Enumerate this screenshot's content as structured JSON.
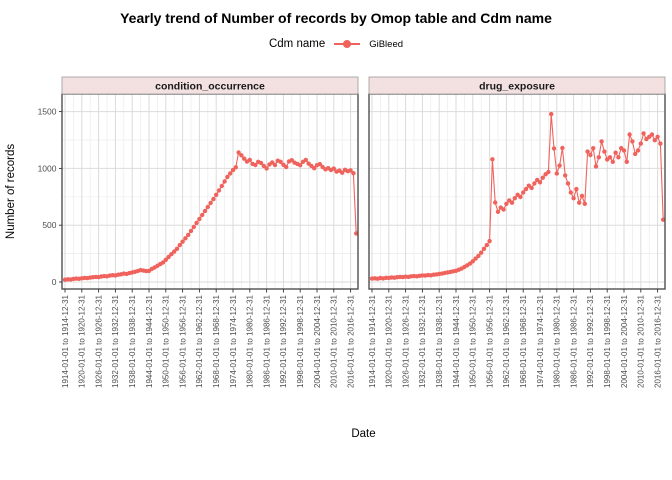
{
  "title": "Yearly trend of Number of records by Omop table and Cdm name",
  "legend": {
    "title": "Cdm name",
    "position": "top",
    "items": [
      {
        "label": "GiBleed",
        "color": "#F0635D",
        "marker": "point-on-line"
      }
    ]
  },
  "colors": {
    "series": "#F0635D",
    "strip_fill": "#F3E1E2",
    "strip_border": "#9A9A9A",
    "panel_border": "#4F4F4F",
    "grid_major": "#DBDBDB",
    "grid_minor": "#ECECEC",
    "tick_label": "#4D4D4D",
    "text": "#000000",
    "background": "#FFFFFF"
  },
  "chart_data": {
    "type": "line",
    "title": "Yearly trend of Number of records by Omop table and Cdm name",
    "xlabel": "Date",
    "ylabel": "Number of records",
    "ylim": [
      0,
      1500
    ],
    "yticks": [
      0,
      500,
      1000,
      1500
    ],
    "grid": "on",
    "legend_position": "top",
    "series_name": "GiBleed",
    "x_range": [
      1914,
      2018
    ],
    "x_step": 1,
    "x_tick_years": [
      1914,
      1920,
      1926,
      1932,
      1938,
      1944,
      1950,
      1956,
      1962,
      1968,
      1974,
      1980,
      1986,
      1992,
      1998,
      2004,
      2010,
      2016
    ],
    "x_tick_labels": [
      "1914-01-01 to 1914-12-31",
      "1920-01-01 to 1920-12-31",
      "1926-01-01 to 1926-12-31",
      "1932-01-01 to 1932-12-31",
      "1938-01-01 to 1938-12-31",
      "1944-01-01 to 1944-12-31",
      "1950-01-01 to 1950-12-31",
      "1956-01-01 to 1956-12-31",
      "1962-01-01 to 1962-12-31",
      "1968-01-01 to 1968-12-31",
      "1974-01-01 to 1974-12-31",
      "1980-01-01 to 1980-12-31",
      "1986-01-01 to 1986-12-31",
      "1992-01-01 to 1992-12-31",
      "1998-01-01 to 1998-12-31",
      "2004-01-01 to 2004-12-31",
      "2010-01-01 to 2010-12-31",
      "2016-01-01 to 2016-12-31"
    ],
    "facets": [
      {
        "label": "condition_occurrence",
        "values": [
          20,
          24,
          22,
          27,
          30,
          28,
          33,
          36,
          34,
          39,
          42,
          45,
          43,
          48,
          52,
          50,
          56,
          60,
          58,
          64,
          68,
          74,
          71,
          78,
          84,
          90,
          97,
          105,
          100,
          96,
          98,
          115,
          128,
          143,
          158,
          172,
          195,
          220,
          245,
          268,
          292,
          325,
          355,
          385,
          415,
          450,
          485,
          520,
          555,
          590,
          625,
          660,
          695,
          730,
          768,
          806,
          845,
          885,
          925,
          955,
          985,
          1010,
          1140,
          1115,
          1085,
          1060,
          1075,
          1040,
          1030,
          1058,
          1048,
          1022,
          1000,
          1035,
          1052,
          1030,
          1068,
          1058,
          1032,
          1012,
          1062,
          1072,
          1050,
          1040,
          1028,
          1058,
          1075,
          1042,
          1022,
          1002,
          1028,
          1038,
          1012,
          992,
          1002,
          986,
          998,
          972,
          980,
          962,
          988,
          975,
          982,
          958,
          428
        ]
      },
      {
        "label": "drug_exposure",
        "values": [
          30,
          33,
          29,
          35,
          32,
          37,
          35,
          40,
          38,
          42,
          45,
          43,
          47,
          45,
          50,
          52,
          50,
          55,
          58,
          56,
          61,
          59,
          64,
          67,
          71,
          74,
          79,
          84,
          89,
          94,
          99,
          108,
          118,
          132,
          147,
          162,
          182,
          206,
          230,
          258,
          292,
          325,
          360,
          1080,
          700,
          618,
          655,
          638,
          688,
          718,
          698,
          738,
          768,
          748,
          788,
          818,
          848,
          828,
          868,
          898,
          878,
          918,
          948,
          968,
          1478,
          1175,
          955,
          1025,
          1180,
          938,
          868,
          788,
          738,
          818,
          698,
          758,
          688,
          1148,
          1118,
          1178,
          1018,
          1098,
          1238,
          1148,
          1078,
          1098,
          1058,
          1138,
          1098,
          1178,
          1158,
          1058,
          1298,
          1238,
          1128,
          1158,
          1218,
          1308,
          1258,
          1278,
          1298,
          1248,
          1278,
          1218,
          548
        ]
      }
    ]
  }
}
